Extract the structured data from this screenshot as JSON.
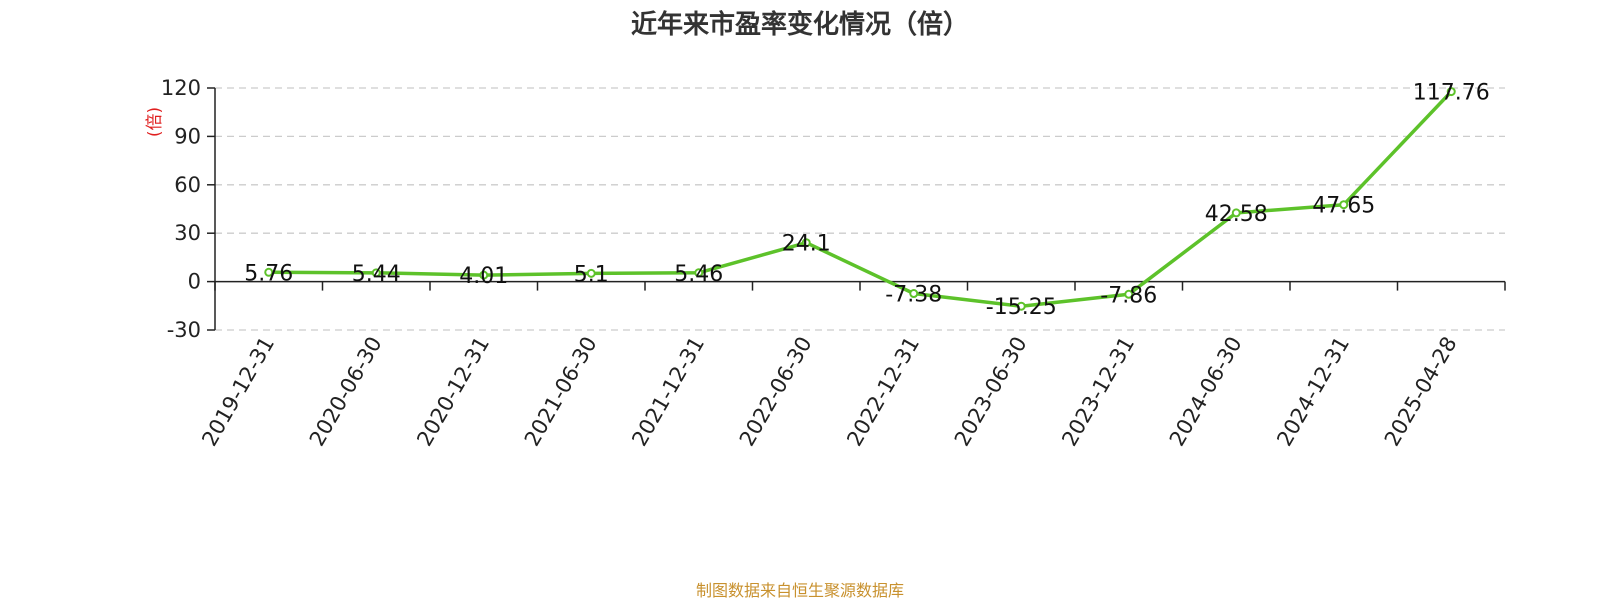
{
  "colors": {
    "line": "#5dc22a",
    "axis": "#222222",
    "grid": "#cccccc",
    "unit": "#e02020",
    "source": "#c8912e"
  },
  "chart_data": {
    "type": "line",
    "title": "近年来市盈率变化情况（倍）",
    "ylabel": "(倍)",
    "xlabel": "",
    "categories": [
      "2019-12-31",
      "2020-06-30",
      "2020-12-31",
      "2021-06-30",
      "2021-12-31",
      "2022-06-30",
      "2022-12-31",
      "2023-06-30",
      "2023-12-31",
      "2024-06-30",
      "2024-12-31",
      "2025-04-28"
    ],
    "values": [
      5.76,
      5.44,
      4.01,
      5.1,
      5.46,
      24.1,
      -7.38,
      -15.25,
      -7.86,
      42.58,
      47.65,
      117.76
    ],
    "value_labels": [
      "5.76",
      "5.44",
      "4.01",
      "5.1",
      "5.46",
      "24.1",
      "-7.38",
      "-15.25",
      "-7.86",
      "42.58",
      "47.65",
      "117.76"
    ],
    "ylim": [
      -30,
      120
    ],
    "yticks": [
      -30,
      0,
      30,
      60,
      90,
      120
    ],
    "ytick_labels": [
      "-30",
      "0",
      "30",
      "60",
      "90",
      "120"
    ],
    "grid": true,
    "legend": "none"
  },
  "source_note": "制图数据来自恒生聚源数据库"
}
